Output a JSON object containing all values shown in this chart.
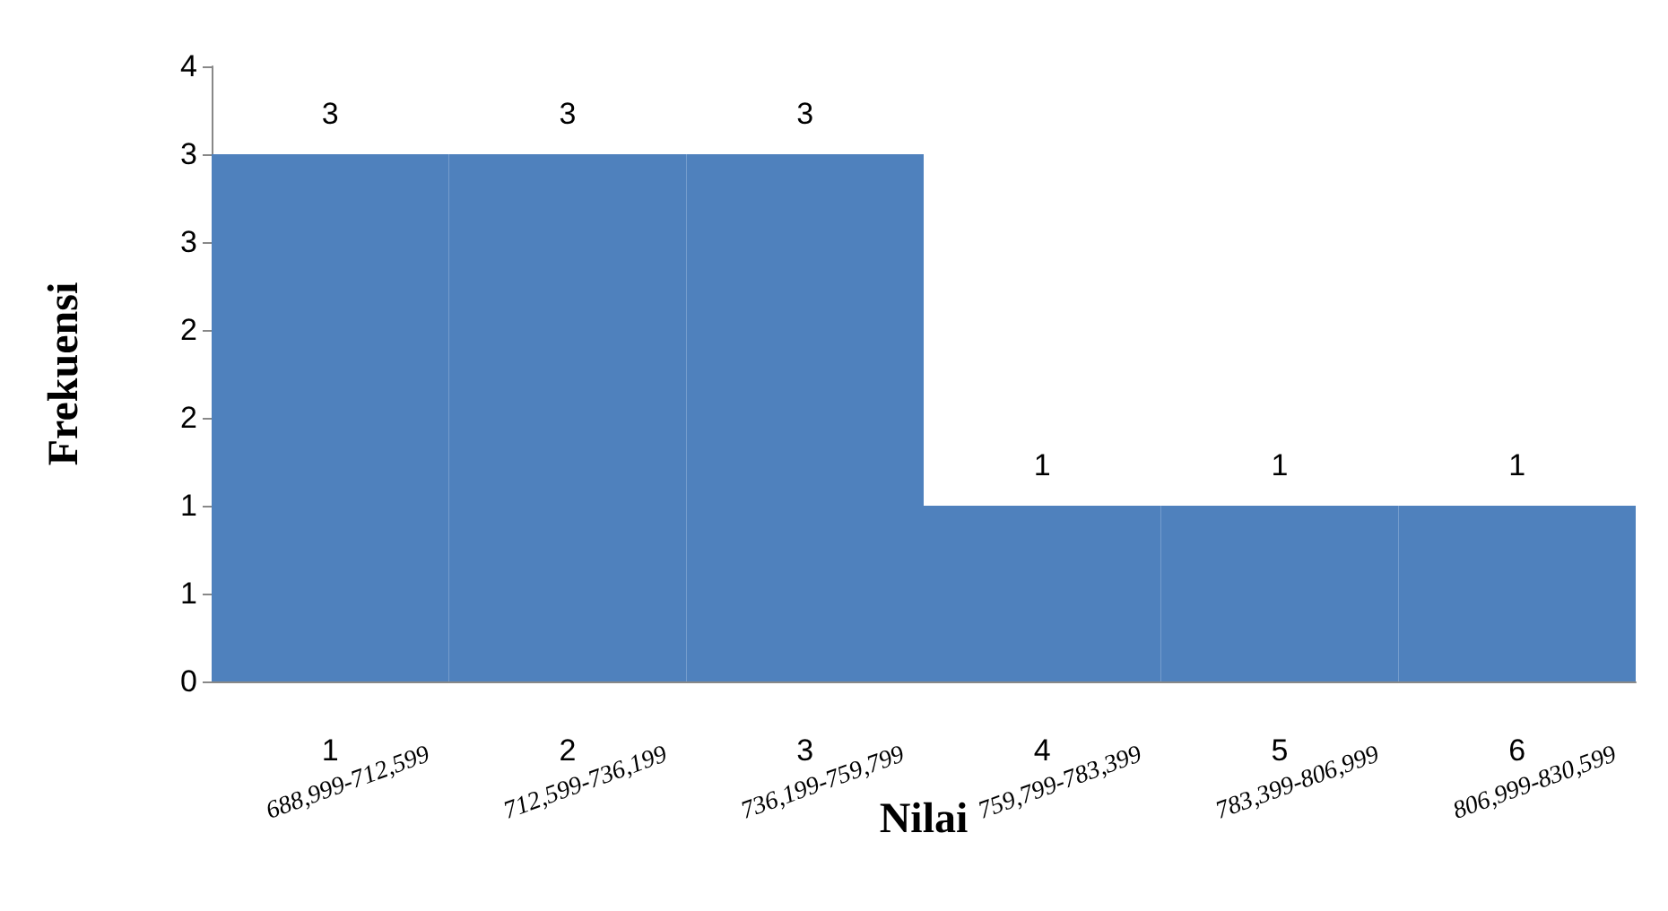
{
  "chart_data": {
    "type": "bar",
    "xlabel": "Nilai",
    "ylabel": "Frekuensi",
    "categories": [
      "1",
      "2",
      "3",
      "4",
      "5",
      "6"
    ],
    "values": [
      3,
      3,
      3,
      1,
      1,
      1
    ],
    "color": "#4f81bd",
    "ylim": [
      0,
      3.5
    ],
    "yticks": [
      0,
      {
        "value": 0.5,
        "label": "1"
      },
      1,
      {
        "value": 1.5,
        "label": "2"
      },
      2,
      {
        "value": 2.5,
        "label": "3"
      },
      3,
      {
        "value": 3.5,
        "label": "4"
      }
    ],
    "data_labels": true,
    "grid": false,
    "annotations": [
      "688,999-712,599",
      "712,599-736,199",
      "736,199-759,799",
      "759,799-783,399",
      "783,399-806,999",
      "806,999-830,599"
    ]
  }
}
